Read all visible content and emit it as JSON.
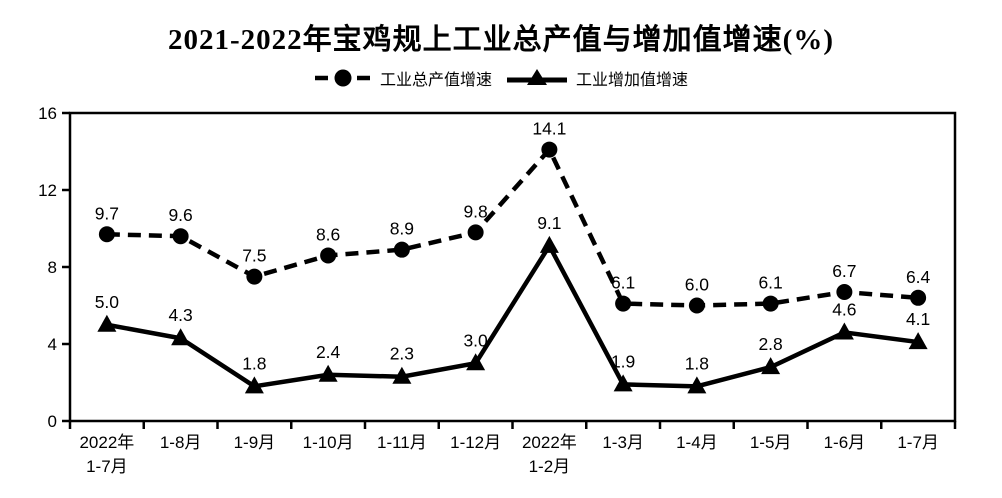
{
  "title": "2021-2022年宝鸡规上工业总产值与增加值增速(%)",
  "legend": [
    {
      "label": "工业总产值增速",
      "marker": "circle-dashed"
    },
    {
      "label": "工业增加值增速",
      "marker": "triangle-solid"
    }
  ],
  "chart_data": {
    "type": "line",
    "title": "2021-2022年宝鸡规上工业总产值与增加值增速(%)",
    "categories": [
      "2022年\n1-7月",
      "1-8月",
      "1-9月",
      "1-10月",
      "1-11月",
      "1-12月",
      "2022年\n1-2月",
      "1-3月",
      "1-4月",
      "1-5月",
      "1-6月",
      "1-7月"
    ],
    "series": [
      {
        "name": "工业总产值增速",
        "style": "dashed",
        "marker": "circle",
        "values": [
          9.7,
          9.6,
          7.5,
          8.6,
          8.9,
          9.8,
          14.1,
          6.1,
          6.0,
          6.1,
          6.7,
          6.4
        ]
      },
      {
        "name": "工业增加值增速",
        "style": "solid",
        "marker": "triangle",
        "values": [
          5.0,
          4.3,
          1.8,
          2.4,
          2.3,
          3.0,
          9.1,
          1.9,
          1.8,
          2.8,
          4.6,
          4.1
        ]
      }
    ],
    "xlabel": "",
    "ylabel": "",
    "ylim": [
      0,
      16
    ],
    "yticks": [
      0,
      4,
      8,
      12,
      16
    ],
    "data_labels": true,
    "grid": false,
    "legend_position": "top",
    "colors": {
      "line": "#000000",
      "background": "#ffffff",
      "text": "#000000"
    }
  }
}
